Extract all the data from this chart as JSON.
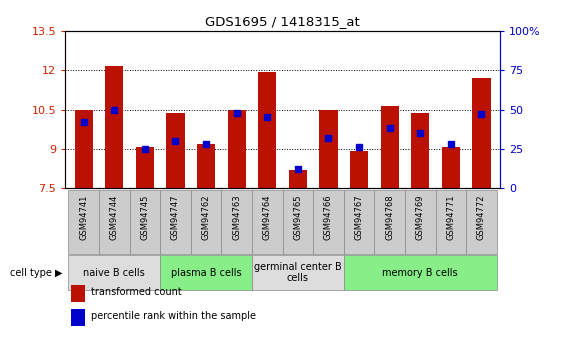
{
  "title": "GDS1695 / 1418315_at",
  "samples": [
    "GSM94741",
    "GSM94744",
    "GSM94745",
    "GSM94747",
    "GSM94762",
    "GSM94763",
    "GSM94764",
    "GSM94765",
    "GSM94766",
    "GSM94767",
    "GSM94768",
    "GSM94769",
    "GSM94771",
    "GSM94772"
  ],
  "transformed_count": [
    10.47,
    12.17,
    9.07,
    10.38,
    9.18,
    10.5,
    11.95,
    8.2,
    10.47,
    8.92,
    10.63,
    10.38,
    9.07,
    11.72
  ],
  "percentile_rank": [
    42,
    50,
    25,
    30,
    28,
    48,
    45,
    12,
    32,
    26,
    38,
    35,
    28,
    47
  ],
  "ylim_left": [
    7.5,
    13.5
  ],
  "ylim_right": [
    0,
    100
  ],
  "yticks_left": [
    7.5,
    9.0,
    10.5,
    12.0,
    13.5
  ],
  "ytick_labels_left": [
    "7.5",
    "9",
    "10.5",
    "12",
    "13.5"
  ],
  "yticks_right": [
    0,
    25,
    50,
    75,
    100
  ],
  "ytick_labels_right": [
    "0",
    "25",
    "50",
    "75",
    "100%"
  ],
  "bar_color": "#bb1100",
  "dot_color": "#0000cc",
  "cell_groups": [
    {
      "label": "naive B cells",
      "start": 0,
      "end": 3,
      "color": "#dddddd"
    },
    {
      "label": "plasma B cells",
      "start": 3,
      "end": 6,
      "color": "#88ee88"
    },
    {
      "label": "germinal center B\ncells",
      "start": 6,
      "end": 9,
      "color": "#dddddd"
    },
    {
      "label": "memory B cells",
      "start": 9,
      "end": 14,
      "color": "#88ee88"
    }
  ],
  "sample_box_color": "#cccccc",
  "xlabel_cell_type": "cell type",
  "legend_items": [
    {
      "label": "transformed count",
      "color": "#bb1100"
    },
    {
      "label": "percentile rank within the sample",
      "color": "#0000cc"
    }
  ],
  "base_value": 7.5,
  "background_color": "#ffffff",
  "plot_bg_color": "#ffffff"
}
